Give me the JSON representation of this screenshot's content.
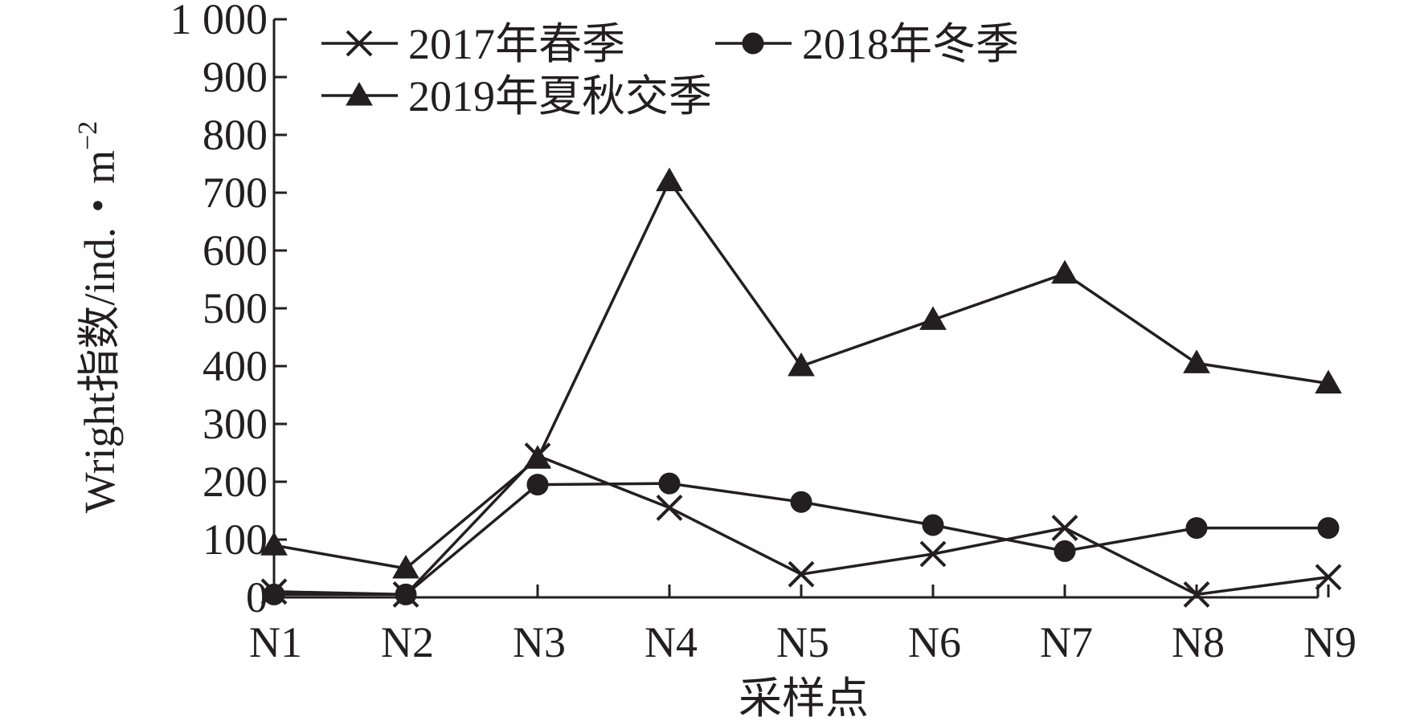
{
  "chart_data": {
    "type": "line",
    "categories": [
      "N1",
      "N2",
      "N3",
      "N4",
      "N5",
      "N6",
      "N7",
      "N8",
      "N9"
    ],
    "series": [
      {
        "name": "2017年春季",
        "marker": "x",
        "values": [
          10,
          5,
          245,
          155,
          40,
          75,
          120,
          5,
          35
        ]
      },
      {
        "name": "2018年冬季",
        "marker": "circle",
        "values": [
          5,
          5,
          195,
          197,
          165,
          125,
          80,
          120,
          120
        ]
      },
      {
        "name": "2019年夏秋交季",
        "marker": "triangle",
        "values": [
          90,
          50,
          240,
          720,
          400,
          480,
          560,
          405,
          370
        ]
      }
    ],
    "xlabel": "采样点",
    "ylabel": "Wright指数/ind.・m",
    "ylabel_sup": "−2",
    "ylim": [
      0,
      1000
    ],
    "yticks": [
      0,
      100,
      200,
      300,
      400,
      500,
      600,
      700,
      800,
      900,
      1000
    ],
    "ytick_labels": [
      "0",
      "100",
      "200",
      "300",
      "400",
      "500",
      "600",
      "700",
      "800",
      "900",
      "1 000"
    ],
    "legend_position": "top-left",
    "grid": false,
    "color": "#231f20"
  }
}
